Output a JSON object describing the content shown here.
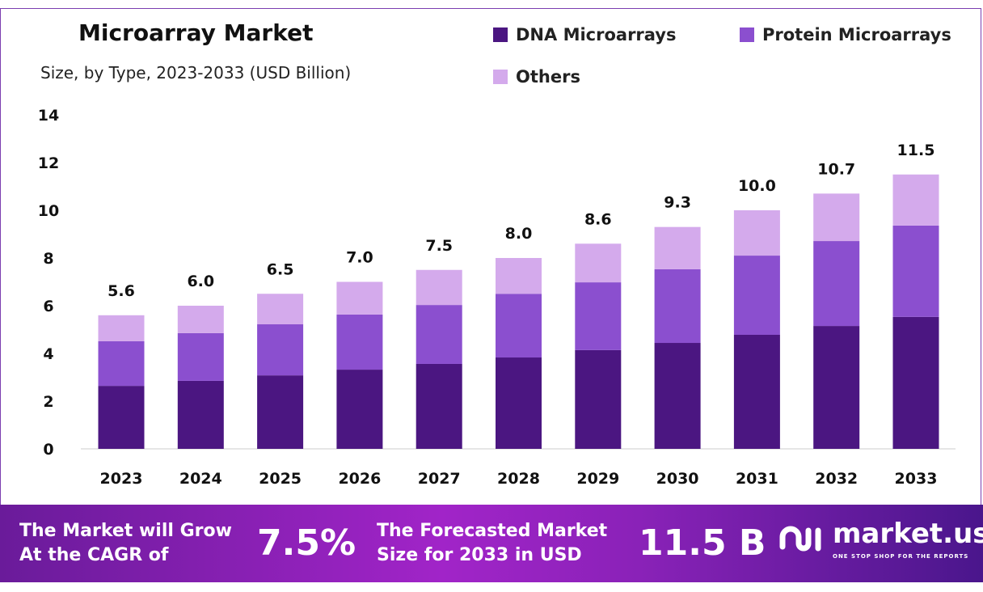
{
  "chart_data": {
    "type": "bar",
    "stacked": true,
    "title": "Microarray Market",
    "subtitle": "Size, by Type, 2023-2033 (USD Billion)",
    "categories": [
      "2023",
      "2024",
      "2025",
      "2026",
      "2027",
      "2028",
      "2029",
      "2030",
      "2031",
      "2032",
      "2033"
    ],
    "series": [
      {
        "name": "DNA Microarrays",
        "color": "#4b1681",
        "values": [
          2.64,
          2.85,
          3.08,
          3.32,
          3.56,
          3.83,
          4.14,
          4.44,
          4.78,
          5.15,
          5.53
        ]
      },
      {
        "name": "Protein Microarrays",
        "color": "#8b4fcf",
        "values": [
          1.87,
          2.0,
          2.14,
          2.31,
          2.47,
          2.67,
          2.84,
          3.09,
          3.32,
          3.56,
          3.83
        ]
      },
      {
        "name": "Others",
        "color": "#d4aaec",
        "values": [
          1.09,
          1.15,
          1.28,
          1.37,
          1.47,
          1.5,
          1.62,
          1.77,
          1.9,
          1.99,
          2.14
        ]
      }
    ],
    "totals": [
      "5.6",
      "6.0",
      "6.5",
      "7.0",
      "7.5",
      "8.0",
      "8.6",
      "9.3",
      "10.0",
      "10.7",
      "11.5"
    ],
    "ylim": [
      0,
      14
    ],
    "yticks": [
      "0",
      "2",
      "4",
      "6",
      "8",
      "10",
      "12",
      "14"
    ],
    "grid": false,
    "legend": "top-right"
  },
  "footer": {
    "cagr_label_1": "The Market will Grow",
    "cagr_label_2": "At the CAGR of",
    "cagr_value": "7.5%",
    "forecast_label_1": "The Forecasted Market",
    "forecast_label_2": "Size for 2033 in USD",
    "forecast_value": "11.5 B",
    "logo_text": "market.us",
    "logo_tagline": "ONE STOP SHOP FOR THE REPORTS"
  }
}
